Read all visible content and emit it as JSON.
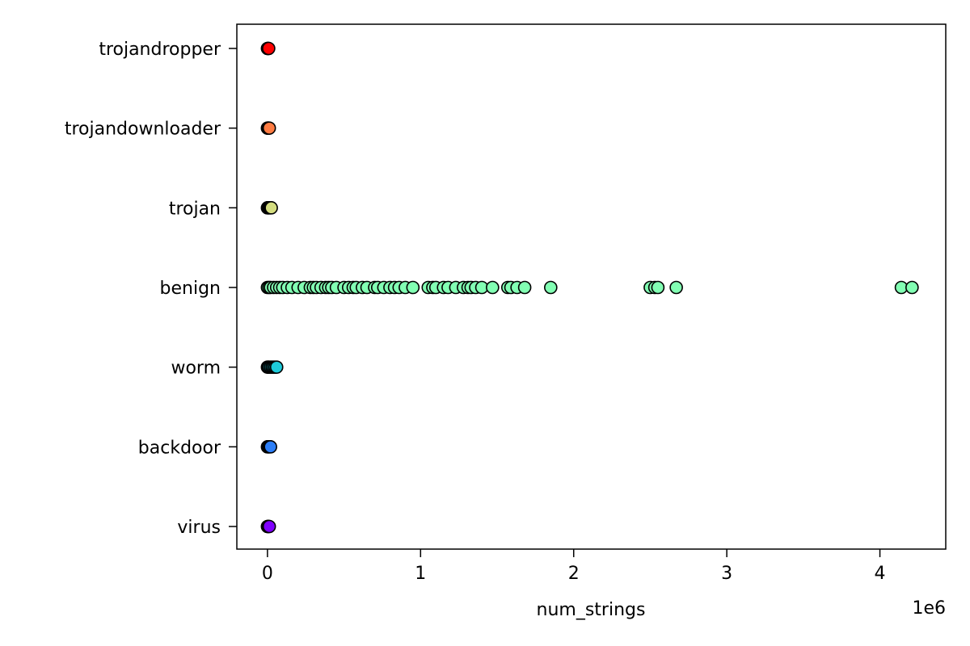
{
  "chart_data": {
    "type": "scatter",
    "title": "",
    "xlabel": "num_strings",
    "ylabel": "",
    "x_offset_text": "1e6",
    "x_multiplier": 1000000,
    "xlim": [
      -200000,
      4430000
    ],
    "x_ticks": [
      0,
      1000000,
      2000000,
      3000000,
      4000000
    ],
    "x_tick_labels": [
      "0",
      "1",
      "2",
      "3",
      "4"
    ],
    "categories": [
      "virus",
      "backdoor",
      "worm",
      "benign",
      "trojan",
      "trojandownloader",
      "trojandropper"
    ],
    "grid": false,
    "legend": "none",
    "marker_edge_color": "#000000",
    "series": [
      {
        "category": "virus",
        "color": "#8000ff",
        "x": [
          0,
          2000,
          5000,
          8000,
          12000
        ]
      },
      {
        "category": "backdoor",
        "color": "#2c7ef7",
        "x": [
          0,
          3000,
          6000,
          10000,
          15000,
          20000
        ]
      },
      {
        "category": "worm",
        "color": "#1ecbda",
        "x": [
          0,
          5000,
          10000,
          20000,
          30000,
          40000,
          50000,
          60000
        ]
      },
      {
        "category": "benign",
        "color": "#82ffb3",
        "x": [
          0,
          10000,
          20000,
          40000,
          60000,
          80000,
          100000,
          130000,
          160000,
          200000,
          240000,
          280000,
          300000,
          320000,
          350000,
          380000,
          400000,
          420000,
          450000,
          500000,
          530000,
          560000,
          580000,
          620000,
          650000,
          700000,
          720000,
          760000,
          800000,
          830000,
          860000,
          900000,
          950000,
          1050000,
          1080000,
          1100000,
          1150000,
          1180000,
          1230000,
          1280000,
          1310000,
          1330000,
          1360000,
          1400000,
          1470000,
          1570000,
          1590000,
          1630000,
          1680000,
          1850000,
          2500000,
          2530000,
          2550000,
          2670000,
          4140000,
          4210000
        ]
      },
      {
        "category": "trojan",
        "color": "#d4dd80",
        "x": [
          0,
          3000,
          6000,
          10000,
          15000,
          20000,
          25000
        ]
      },
      {
        "category": "trojandownloader",
        "color": "#ff7c43",
        "x": [
          0,
          2000,
          5000,
          8000,
          12000
        ]
      },
      {
        "category": "trojandropper",
        "color": "#ff0000",
        "x": [
          0,
          2000,
          5000,
          8000
        ]
      }
    ]
  }
}
